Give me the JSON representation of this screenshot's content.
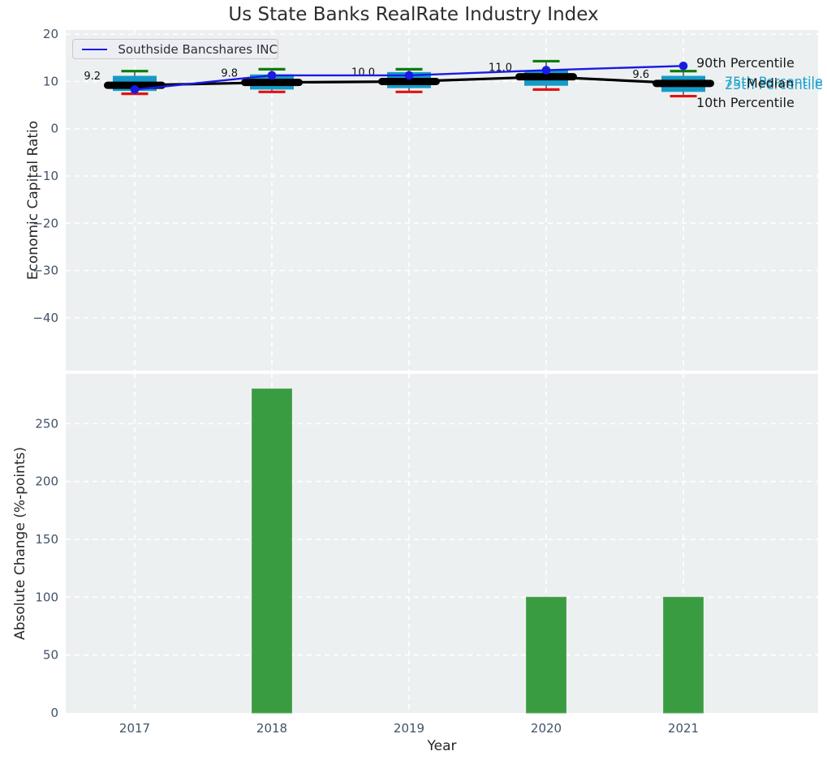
{
  "title": "Us State Banks RealRate Industry Index",
  "legend": {
    "series_label": "Southside Bancshares INC"
  },
  "annotations": {
    "p90": "90th Percentile",
    "p75": "75th Percentile",
    "median": "Median",
    "p25": "25th Percentile",
    "p10": "10th Percentile"
  },
  "colors": {
    "company_line": "#1a1ae6",
    "company_marker": "#1a1ae6",
    "box_fill": "#169bc9",
    "whisker_top_cap": "#0b7d0b",
    "whisker_bottom_cap": "#e01212",
    "whisker_line": "#454545",
    "median_line": "#000000",
    "bar_fill": "#3a9c40",
    "bar_edge": "#57a85c",
    "plot_bg": "#edf0f0",
    "grid": "#ffffff",
    "tick_text": "#415368",
    "label_text": "#262626",
    "median_label_text": "#111111"
  },
  "chart_data": [
    {
      "type": "boxplot+line",
      "title": "Us State Banks RealRate Industry Index",
      "ylabel": "Economic Capital Ratio",
      "x": [
        2017,
        2018,
        2019,
        2020,
        2021
      ],
      "ylim": [
        -51.2,
        20.9
      ],
      "yticks": [
        20,
        10,
        0,
        -10,
        -20,
        -30,
        -40
      ],
      "grid": true,
      "legend_position": "upper left",
      "series": [
        {
          "name": "Southside Bancshares INC",
          "type": "line",
          "values": [
            8.3,
            11.3,
            11.3,
            12.4,
            13.3
          ]
        }
      ],
      "boxes": {
        "p90": [
          12.2,
          12.6,
          12.6,
          14.3,
          12.2
        ],
        "p75": [
          11.2,
          11.5,
          12.0,
          12.4,
          11.2
        ],
        "median": [
          9.2,
          9.8,
          10.0,
          11.0,
          9.6
        ],
        "p25": [
          8.0,
          8.3,
          8.6,
          9.1,
          7.8
        ],
        "p10": [
          7.4,
          7.8,
          7.8,
          8.3,
          6.9
        ]
      },
      "median_labels": [
        "9.2",
        "9.8",
        "10.0",
        "11.0",
        "9.6"
      ]
    },
    {
      "type": "bar",
      "ylabel": "Absolute Change (%-points)",
      "xlabel": "Year",
      "categories": [
        "2017",
        "2018",
        "2019",
        "2020",
        "2021"
      ],
      "values": [
        0,
        280,
        0,
        100,
        100
      ],
      "ylim": [
        0,
        293
      ],
      "yticks": [
        0,
        50,
        100,
        150,
        200,
        250
      ],
      "grid": true
    }
  ]
}
